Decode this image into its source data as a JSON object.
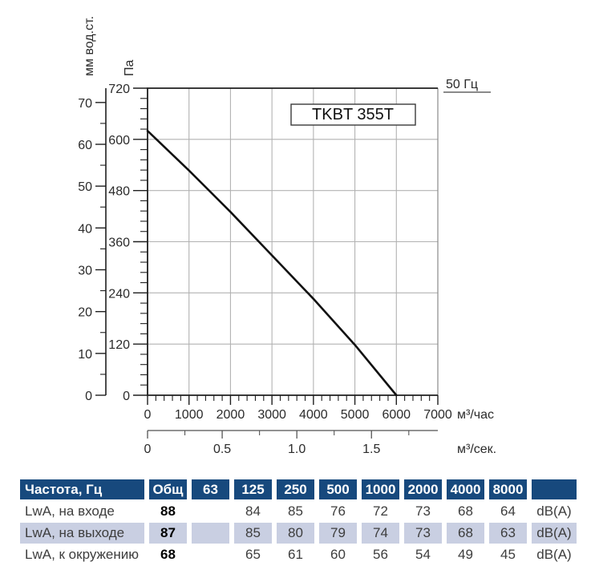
{
  "colors": {
    "table_header_bg": "#17497d",
    "table_header_text": "#ffffff",
    "table_row_highlight_bg": "#c9cfe2",
    "text_primary": "#000000",
    "text_secondary": "#3d3d3d",
    "grid_line": "#b2b2b2",
    "axis_line": "#1f1f1f",
    "curve": "#111111"
  },
  "chart_data": {
    "type": "line",
    "title": "TKBT 355T",
    "corner_label": "50 Гц",
    "legend_position": "none",
    "grid": true,
    "axes": {
      "pressure_pa": {
        "label": "Па",
        "min": 0,
        "max": 720,
        "major_step": 120,
        "minor_step": 24,
        "ticks": [
          0,
          120,
          240,
          360,
          480,
          600,
          720
        ],
        "tick_labels": [
          "0",
          "120",
          "240",
          "360",
          "480",
          "600",
          "720"
        ]
      },
      "pressure_mm": {
        "label": "мм вод.ст.",
        "min": 0,
        "max": 70,
        "major_step": 10,
        "minor_step": 5,
        "pa_per_unit": 9.80665,
        "ticks": [
          0,
          10,
          20,
          30,
          40,
          50,
          60,
          70
        ],
        "tick_labels": [
          "0",
          "10",
          "20",
          "30",
          "40",
          "50",
          "60",
          "70"
        ]
      },
      "flow_m3h": {
        "label": "м³/час",
        "min": 0,
        "max": 7000,
        "major_step": 1000,
        "minor_step": 200,
        "ticks": [
          0,
          1000,
          2000,
          3000,
          4000,
          5000,
          6000,
          7000
        ],
        "tick_labels": [
          "0",
          "1000",
          "2000",
          "3000",
          "4000",
          "5000",
          "6000",
          "7000"
        ]
      },
      "flow_m3s": {
        "label": "м³/сек.",
        "min": 0,
        "max": 1.944,
        "major_step": 0.5,
        "minor_step": 0.25,
        "ticks": [
          0,
          0.5,
          1.0,
          1.5
        ],
        "tick_labels": [
          "0",
          "0.5",
          "1.0",
          "1.5"
        ]
      }
    },
    "series": [
      {
        "name": "fan-performance-curve",
        "points": [
          [
            0,
            620
          ],
          [
            1000,
            527
          ],
          [
            2000,
            430
          ],
          [
            3000,
            328
          ],
          [
            4000,
            226
          ],
          [
            5000,
            118
          ],
          [
            6000,
            0
          ]
        ]
      }
    ]
  },
  "table": {
    "header": [
      "Частота, Гц",
      "Общ",
      "63",
      "125",
      "250",
      "500",
      "1000",
      "2000",
      "4000",
      "8000",
      ""
    ],
    "rows": [
      {
        "label": "LwA, на входе",
        "total": "88",
        "values": [
          "",
          "84",
          "85",
          "76",
          "72",
          "73",
          "68",
          "64"
        ],
        "unit": "dB(A)",
        "highlight": false
      },
      {
        "label": "LwA, на выходе",
        "total": "87",
        "values": [
          "",
          "85",
          "80",
          "79",
          "74",
          "73",
          "68",
          "63"
        ],
        "unit": "dB(A)",
        "highlight": true
      },
      {
        "label": "LwA, к окружению",
        "total": "68",
        "values": [
          "",
          "65",
          "61",
          "60",
          "56",
          "54",
          "49",
          "45"
        ],
        "unit": "dB(A)",
        "highlight": false
      }
    ]
  }
}
